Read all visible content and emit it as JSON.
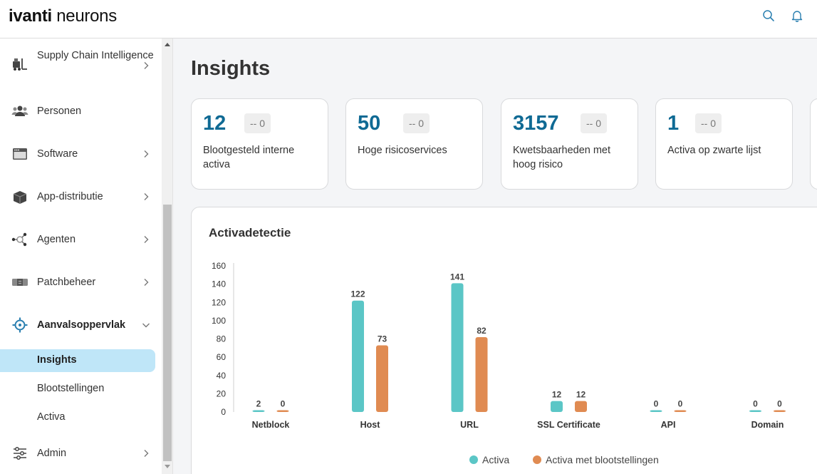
{
  "header": {
    "logo_part1": "ivanti",
    "logo_part2": " neurons",
    "icons": [
      "search-icon",
      "bell-icon"
    ]
  },
  "sidebar": {
    "items": [
      {
        "label": "Supply Chain Intelligence",
        "icon": "forklift-icon"
      },
      {
        "label": "Personen",
        "icon": "people-icon"
      },
      {
        "label": "Software",
        "icon": "software-window-icon"
      },
      {
        "label": "App-distributie",
        "icon": "package-icon"
      },
      {
        "label": "Agenten",
        "icon": "agent-network-icon"
      },
      {
        "label": "Patchbeheer",
        "icon": "patch-icon"
      },
      {
        "label": "Aanvalsoppervlak",
        "icon": "target-icon"
      },
      {
        "label": "Admin",
        "icon": "sliders-icon"
      }
    ],
    "subitems": [
      {
        "label": "Insights",
        "selected": true
      },
      {
        "label": "Blootstellingen",
        "selected": false
      },
      {
        "label": "Activa",
        "selected": false
      }
    ]
  },
  "main": {
    "title": "Insights",
    "cards": [
      {
        "value": "12",
        "delta": "-- 0",
        "label": "Blootgesteld interne activa"
      },
      {
        "value": "50",
        "delta": "-- 0",
        "label": "Hoge risicoservices"
      },
      {
        "value": "3157",
        "delta": "-- 0",
        "label": "Kwetsbaarheden met hoog risico"
      },
      {
        "value": "1",
        "delta": "-- 0",
        "label": "Activa op zwarte lijst"
      }
    ],
    "panel_title": "Activadetectie"
  },
  "colors": {
    "accent": "#0f6a94",
    "series_activa": "#5bc6c6",
    "series_exposed": "#e08b52",
    "selected_bg": "#bfe6f8"
  },
  "chart_data": {
    "type": "bar",
    "categories": [
      "Netblock",
      "Host",
      "URL",
      "SSL Certificate",
      "API",
      "Domain"
    ],
    "series": [
      {
        "name": "Activa",
        "values": [
          2,
          122,
          141,
          12,
          0,
          0
        ]
      },
      {
        "name": "Activa met blootstellingen",
        "values": [
          0,
          73,
          82,
          12,
          0,
          0
        ]
      }
    ],
    "y_ticks": [
      0,
      20,
      40,
      60,
      80,
      100,
      120,
      140,
      160
    ],
    "ylim": [
      0,
      160
    ],
    "legend_position": "bottom-center",
    "grid": false
  }
}
